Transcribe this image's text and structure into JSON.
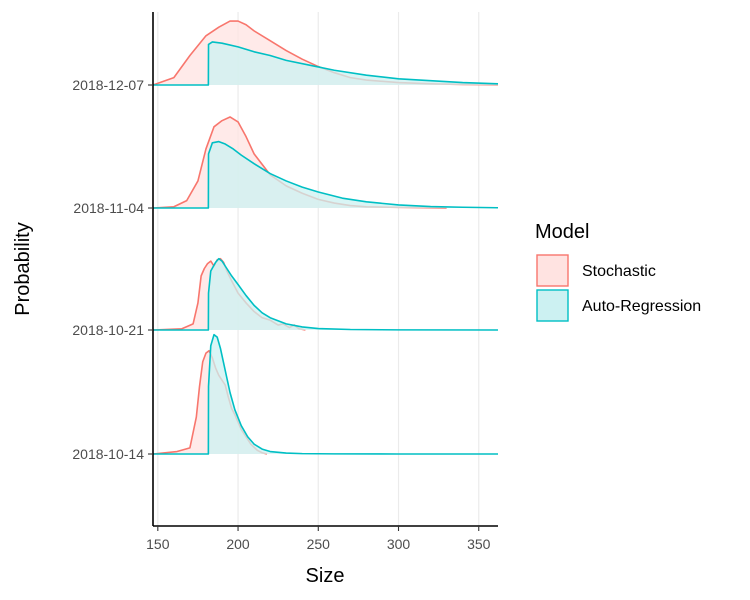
{
  "chart_data": {
    "type": "area",
    "subtype": "ridgeline-density",
    "title": "",
    "xlabel": "Size",
    "ylabel": "Probability",
    "xlim": [
      147,
      362
    ],
    "x_ticks": [
      150,
      200,
      250,
      300,
      350
    ],
    "y_categories": [
      "2018-10-14",
      "2018-10-21",
      "2018-11-04",
      "2018-12-07"
    ],
    "grid": {
      "vertical_major": true,
      "horizontal": false
    },
    "legend": {
      "title": "Model",
      "placement": "right",
      "entries": [
        {
          "label": "Stochastic",
          "color": "#F8766D",
          "fill": "#FFE3E1"
        },
        {
          "label": "Auto-Regression",
          "color": "#00BFC4",
          "fill": "#CCF1F2"
        }
      ]
    },
    "series": [
      {
        "name": "Stochastic",
        "color": "#F8766D",
        "ridges": [
          {
            "category": "2018-10-14",
            "x": [
              147,
              162,
              170,
              174,
              176,
              178,
              180,
              182,
              184,
              186,
              188,
              190,
              192,
              194,
              196,
              198,
              200,
              202,
              205,
              208,
              212,
              215,
              218
            ],
            "y": [
              0,
              0.02,
              0.05,
              0.3,
              0.55,
              0.75,
              0.82,
              0.84,
              0.78,
              0.7,
              0.64,
              0.6,
              0.56,
              0.46,
              0.37,
              0.32,
              0.26,
              0.2,
              0.14,
              0.08,
              0.03,
              0.01,
              0
            ]
          },
          {
            "category": "2018-10-21",
            "x": [
              147,
              165,
              172,
              175,
              177,
              179,
              181,
              183,
              185,
              187,
              189,
              191,
              193,
              196,
              200,
              205,
              210,
              215,
              220,
              225,
              228,
              232,
              235,
              238,
              242
            ],
            "y": [
              0,
              0.01,
              0.05,
              0.22,
              0.44,
              0.5,
              0.54,
              0.56,
              0.52,
              0.57,
              0.58,
              0.55,
              0.48,
              0.4,
              0.3,
              0.22,
              0.15,
              0.1,
              0.08,
              0.04,
              0.05,
              0.02,
              0.04,
              0.01,
              0
            ]
          },
          {
            "category": "2018-11-04",
            "x": [
              147,
              160,
              168,
              175,
              180,
              185,
              190,
              195,
              200,
              205,
              210,
              220,
              230,
              240,
              250,
              260,
              270,
              280,
              300,
              330
            ],
            "y": [
              0,
              0.01,
              0.06,
              0.22,
              0.48,
              0.66,
              0.71,
              0.74,
              0.7,
              0.58,
              0.44,
              0.27,
              0.18,
              0.12,
              0.07,
              0.04,
              0.02,
              0.01,
              0.005,
              0
            ]
          },
          {
            "category": "2018-12-07",
            "x": [
              147,
              160,
              170,
              180,
              188,
              195,
              200,
              205,
              210,
              220,
              230,
              240,
              250,
              260,
              270,
              280,
              300,
              320,
              340,
              362
            ],
            "y": [
              0,
              0.06,
              0.24,
              0.4,
              0.47,
              0.52,
              0.52,
              0.49,
              0.44,
              0.36,
              0.28,
              0.21,
              0.15,
              0.1,
              0.06,
              0.04,
              0.02,
              0.01,
              0.005,
              0.002
            ]
          }
        ]
      },
      {
        "name": "Auto-Regression",
        "color": "#00BFC4",
        "ridges": [
          {
            "category": "2018-10-14",
            "x": [
              147,
              181.5,
              181.6,
              183,
              185,
              187,
              189,
              191,
              193,
              195,
              198,
              202,
              206,
              210,
              215,
              220,
              230,
              240,
              260,
              300,
              362
            ],
            "y": [
              0,
              0,
              0.55,
              0.88,
              0.97,
              0.95,
              0.86,
              0.74,
              0.62,
              0.5,
              0.36,
              0.23,
              0.14,
              0.08,
              0.04,
              0.02,
              0.008,
              0.003,
              0.001,
              0,
              0
            ]
          },
          {
            "category": "2018-10-21",
            "x": [
              147,
              181.5,
              181.6,
              183,
              186,
              188,
              190,
              193,
              196,
              200,
              205,
              210,
              215,
              220,
              230,
              240,
              250,
              270,
              300,
              362
            ],
            "y": [
              0,
              0,
              0.3,
              0.48,
              0.55,
              0.58,
              0.56,
              0.5,
              0.44,
              0.37,
              0.28,
              0.2,
              0.14,
              0.1,
              0.05,
              0.025,
              0.012,
              0.004,
              0.001,
              0
            ]
          },
          {
            "category": "2018-11-04",
            "x": [
              147,
              181.5,
              181.6,
              184,
              188,
              192,
              197,
              202,
              210,
              220,
              230,
              240,
              250,
              265,
              280,
              300,
              320,
              340,
              362
            ],
            "y": [
              0,
              0,
              0.44,
              0.53,
              0.54,
              0.52,
              0.48,
              0.43,
              0.36,
              0.28,
              0.22,
              0.17,
              0.13,
              0.08,
              0.05,
              0.025,
              0.012,
              0.006,
              0.002
            ]
          },
          {
            "category": "2018-12-07",
            "x": [
              147,
              181.5,
              181.6,
              184,
              190,
              200,
              210,
              220,
              230,
              245,
              260,
              280,
              300,
              320,
              340,
              362
            ],
            "y": [
              0,
              0,
              0.33,
              0.35,
              0.34,
              0.31,
              0.27,
              0.24,
              0.2,
              0.16,
              0.12,
              0.08,
              0.05,
              0.035,
              0.02,
              0.01
            ]
          }
        ]
      }
    ]
  }
}
